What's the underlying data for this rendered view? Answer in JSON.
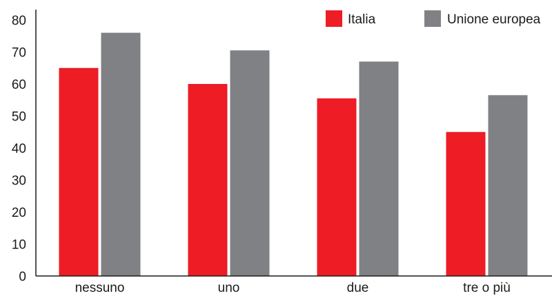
{
  "chart_data": {
    "type": "bar",
    "categories": [
      "nessuno",
      "uno",
      "due",
      "tre o più"
    ],
    "series": [
      {
        "name": "Italia",
        "values": [
          65,
          60,
          55.5,
          45
        ],
        "color": "#ee1c25"
      },
      {
        "name": "Unione europea",
        "values": [
          76,
          70.5,
          67,
          56.5
        ],
        "color": "#808184"
      }
    ],
    "yticks": [
      0,
      10,
      20,
      30,
      40,
      50,
      60,
      70,
      80
    ],
    "ylim": [
      0,
      80
    ],
    "grid": false,
    "legend_position": "top-right"
  }
}
